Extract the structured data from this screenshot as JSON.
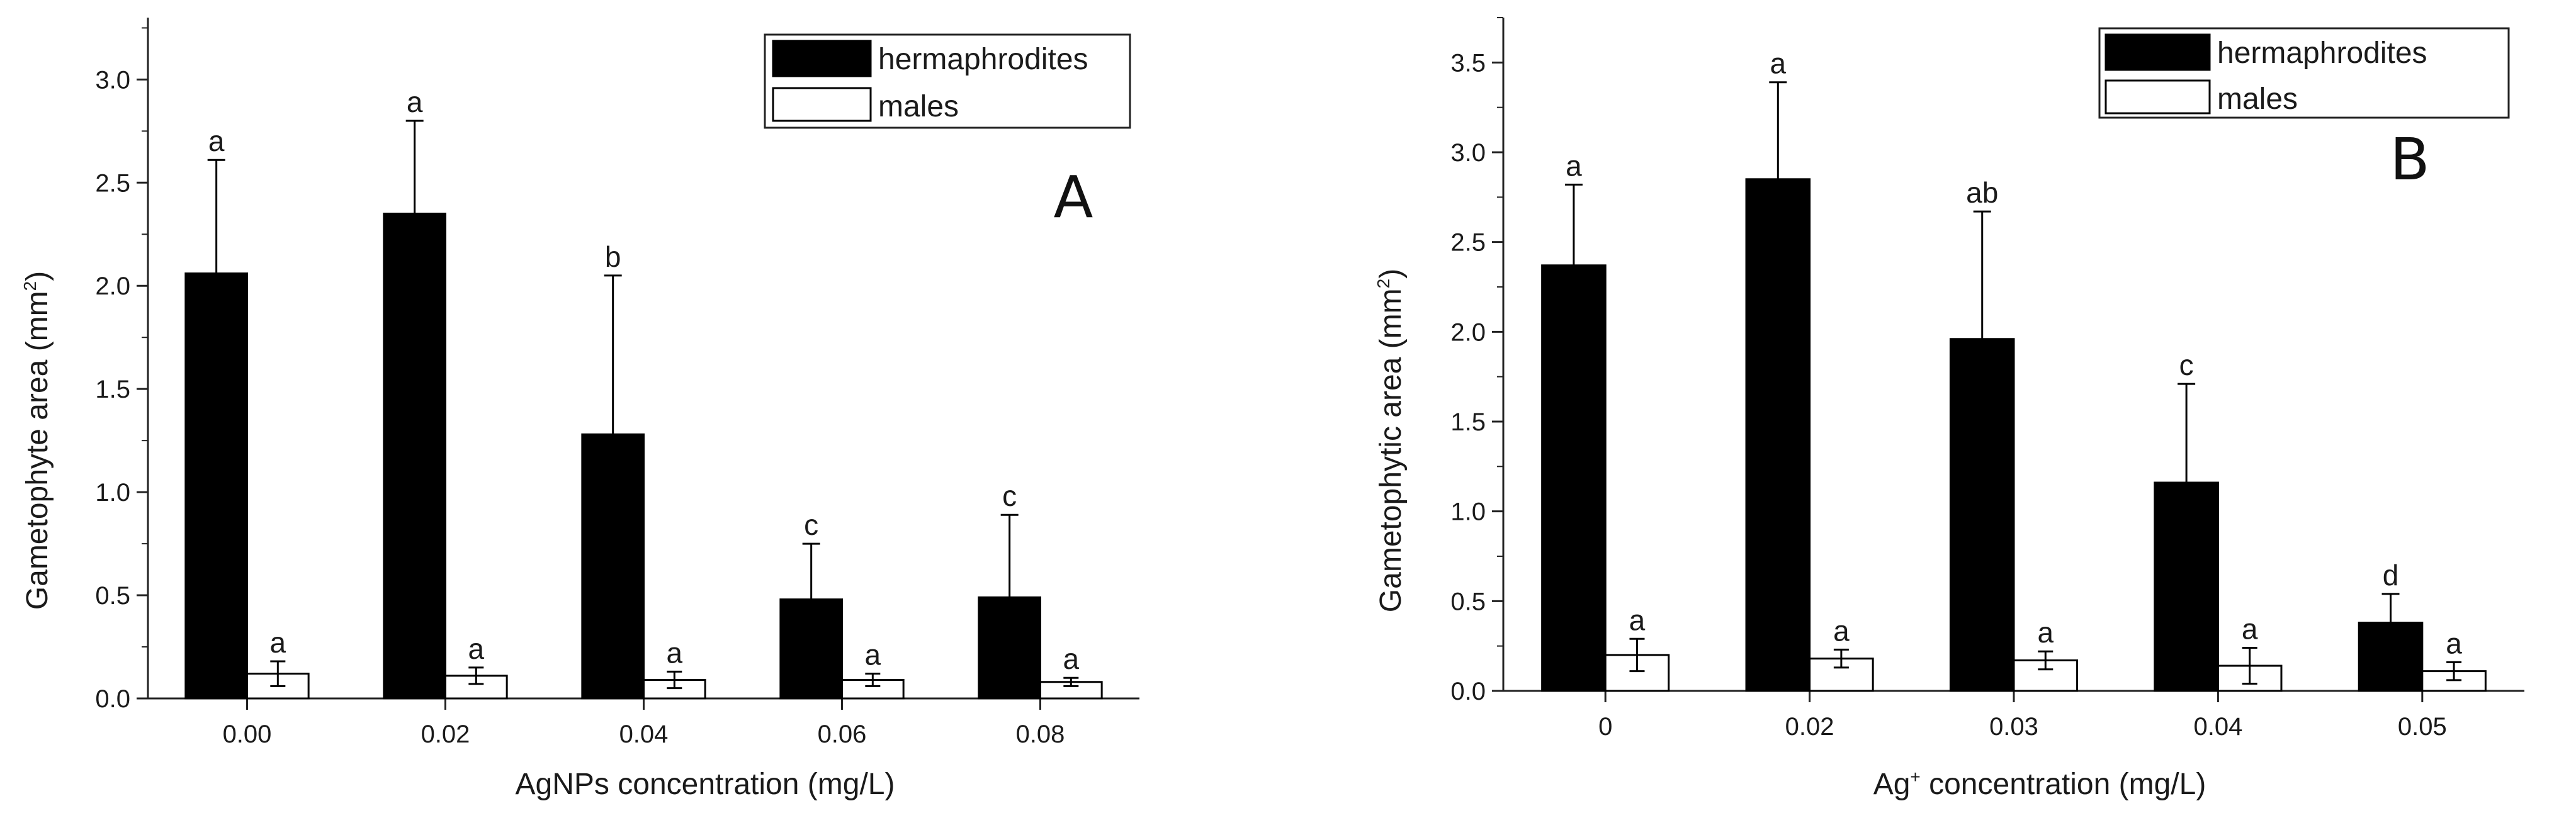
{
  "chart_data": [
    {
      "type": "bar",
      "panel": "A",
      "title": "",
      "xlabel_prefix": "AgNPs concentration (mg/L)",
      "xlabel_sup": "",
      "xlabel_suffix": "",
      "ylabel_prefix": "Gametophyte area (mm",
      "ylabel_sup": "2",
      "ylabel_suffix": ")",
      "ylim": [
        0,
        3.3
      ],
      "yticks": [
        "0.0",
        "0.5",
        "1.0",
        "1.5",
        "2.0",
        "2.5",
        "3.0"
      ],
      "categories": [
        "0.00",
        "0.02",
        "0.04",
        "0.06",
        "0.08"
      ],
      "legend_position": "top-right",
      "series": [
        {
          "name": "hermaphrodites",
          "color": "#000000",
          "values": [
            2.06,
            2.35,
            1.28,
            0.48,
            0.49
          ],
          "errors": [
            0.55,
            0.45,
            0.77,
            0.27,
            0.4
          ],
          "letters": [
            "a",
            "a",
            "b",
            "c",
            "c"
          ]
        },
        {
          "name": "males",
          "color": "#ffffff",
          "values": [
            0.12,
            0.11,
            0.09,
            0.09,
            0.08
          ],
          "errors": [
            0.06,
            0.04,
            0.04,
            0.03,
            0.02
          ],
          "letters": [
            "a",
            "a",
            "a",
            "a",
            "a"
          ]
        }
      ]
    },
    {
      "type": "bar",
      "panel": "B",
      "title": "",
      "xlabel_prefix": "Ag",
      "xlabel_sup": "+",
      "xlabel_suffix": " concentration (mg/L)",
      "ylabel_prefix": "Gametophytic area (mm",
      "ylabel_sup": "2",
      "ylabel_suffix": ")",
      "ylim": [
        0,
        3.75
      ],
      "yticks": [
        "0.0",
        "0.5",
        "1.0",
        "1.5",
        "2.0",
        "2.5",
        "3.0",
        "3.5"
      ],
      "categories": [
        "0",
        "0.02",
        "0.03",
        "0.04",
        "0.05"
      ],
      "legend_position": "top-right",
      "series": [
        {
          "name": "hermaphrodites",
          "color": "#000000",
          "values": [
            2.37,
            2.85,
            1.96,
            1.16,
            0.38
          ],
          "errors": [
            0.45,
            0.54,
            0.71,
            0.55,
            0.16
          ],
          "letters": [
            "a",
            "a",
            "ab",
            "c",
            "d"
          ]
        },
        {
          "name": "males",
          "color": "#ffffff",
          "values": [
            0.2,
            0.18,
            0.17,
            0.14,
            0.11
          ],
          "errors": [
            0.09,
            0.05,
            0.05,
            0.1,
            0.05
          ],
          "letters": [
            "a",
            "a",
            "a",
            "a",
            "a"
          ]
        }
      ]
    }
  ]
}
